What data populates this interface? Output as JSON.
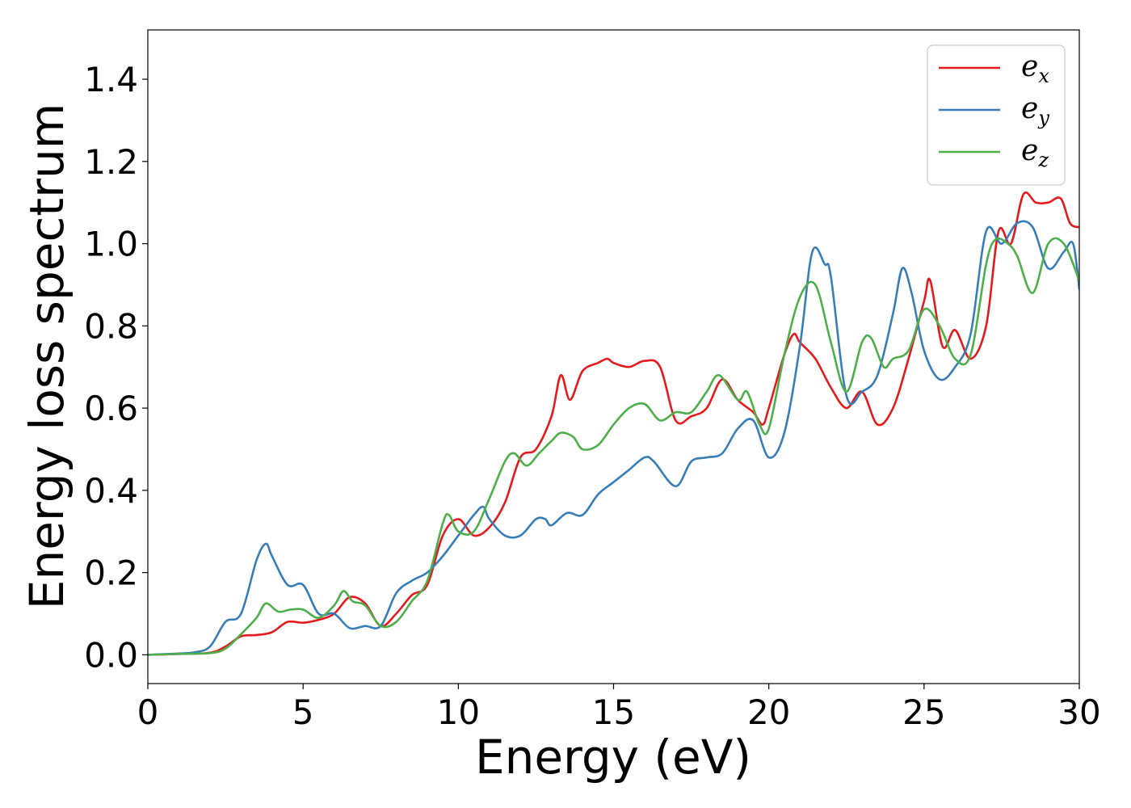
{
  "chart_data": {
    "type": "line",
    "xlabel": "Energy (eV)",
    "ylabel": "Energy loss spectrum",
    "xlim": [
      0,
      30
    ],
    "ylim": [
      -0.07,
      1.52
    ],
    "xticks": [
      0,
      5,
      10,
      15,
      20,
      25,
      30
    ],
    "xtick_labels": [
      "0",
      "5",
      "10",
      "15",
      "20",
      "25",
      "30"
    ],
    "yticks": [
      0.0,
      0.2,
      0.4,
      0.6,
      0.8,
      1.0,
      1.2,
      1.4
    ],
    "ytick_labels": [
      "0.0",
      "0.2",
      "0.4",
      "0.6",
      "0.8",
      "1.0",
      "1.2",
      "1.4"
    ],
    "grid": false,
    "legend_position": "top-right",
    "series": [
      {
        "name": "e",
        "subscript": "x",
        "color": "#e41a1c",
        "x": [
          0,
          1,
          2,
          2.5,
          3,
          3.5,
          4,
          4.5,
          5,
          5.5,
          6,
          6.5,
          7,
          7.5,
          8,
          8.5,
          9,
          9.5,
          10,
          10.5,
          11,
          11.5,
          12,
          12.5,
          13,
          13.3,
          13.6,
          14,
          14.5,
          14.8,
          15,
          15.5,
          16,
          16.5,
          17,
          17.5,
          18,
          18.5,
          19,
          19.5,
          19.8,
          20,
          20.5,
          20.8,
          21,
          21.5,
          22,
          22.5,
          23,
          23.5,
          24,
          24.5,
          25,
          25.2,
          25.6,
          26,
          26.5,
          27,
          27.4,
          27.8,
          28.2,
          28.6,
          29,
          29.4,
          29.7,
          30
        ],
        "y": [
          0,
          0.002,
          0.005,
          0.02,
          0.045,
          0.048,
          0.055,
          0.08,
          0.078,
          0.085,
          0.1,
          0.14,
          0.125,
          0.07,
          0.1,
          0.145,
          0.17,
          0.29,
          0.33,
          0.29,
          0.31,
          0.37,
          0.48,
          0.5,
          0.58,
          0.68,
          0.62,
          0.69,
          0.71,
          0.72,
          0.71,
          0.7,
          0.715,
          0.7,
          0.57,
          0.58,
          0.6,
          0.67,
          0.62,
          0.59,
          0.56,
          0.6,
          0.73,
          0.78,
          0.76,
          0.72,
          0.65,
          0.6,
          0.64,
          0.56,
          0.6,
          0.72,
          0.86,
          0.91,
          0.75,
          0.79,
          0.72,
          0.8,
          1.03,
          1.0,
          1.12,
          1.1,
          1.1,
          1.11,
          1.05,
          1.04
        ]
      },
      {
        "name": "e",
        "subscript": "y",
        "color": "#377eb8",
        "x": [
          0,
          1,
          1.5,
          2,
          2.5,
          3,
          3.5,
          3.8,
          4,
          4.5,
          5,
          5.5,
          6,
          6.5,
          7,
          7.5,
          8,
          8.5,
          9,
          9.5,
          10,
          10.5,
          10.8,
          11,
          11.5,
          12,
          12.5,
          12.8,
          13,
          13.5,
          14,
          14.5,
          15,
          15.5,
          16,
          16.3,
          17,
          17.5,
          18,
          18.5,
          19,
          19.5,
          20,
          20.5,
          21,
          21.4,
          21.8,
          22,
          22.5,
          23,
          23.5,
          24,
          24.3,
          24.6,
          25,
          25.5,
          26,
          26.5,
          27,
          27.5,
          28,
          28.5,
          29,
          29.5,
          29.8,
          30
        ],
        "y": [
          0,
          0.003,
          0.006,
          0.02,
          0.08,
          0.1,
          0.23,
          0.27,
          0.24,
          0.17,
          0.17,
          0.1,
          0.1,
          0.065,
          0.07,
          0.07,
          0.15,
          0.18,
          0.2,
          0.24,
          0.29,
          0.34,
          0.36,
          0.33,
          0.29,
          0.29,
          0.33,
          0.33,
          0.315,
          0.345,
          0.34,
          0.39,
          0.42,
          0.45,
          0.48,
          0.47,
          0.41,
          0.47,
          0.48,
          0.49,
          0.55,
          0.57,
          0.48,
          0.54,
          0.75,
          0.98,
          0.95,
          0.92,
          0.63,
          0.64,
          0.68,
          0.83,
          0.94,
          0.88,
          0.74,
          0.67,
          0.7,
          0.78,
          1.03,
          1.0,
          1.05,
          1.04,
          0.94,
          0.98,
          1.0,
          0.89
        ]
      },
      {
        "name": "e",
        "subscript": "z",
        "color": "#4daf4a",
        "x": [
          0,
          1,
          2,
          2.5,
          3,
          3.5,
          3.8,
          4.2,
          4.6,
          5,
          5.5,
          6,
          6.3,
          6.6,
          7,
          7.5,
          8,
          8.5,
          9,
          9.5,
          9.7,
          10,
          10.5,
          11,
          11.5,
          11.8,
          12.2,
          12.6,
          13,
          13.3,
          13.7,
          14,
          14.5,
          15,
          15.5,
          16,
          16.5,
          17,
          17.5,
          18,
          18.4,
          19,
          19.3,
          19.7,
          20,
          20.5,
          21,
          21.5,
          22,
          22.5,
          23,
          23.3,
          23.7,
          24,
          24.5,
          25,
          25.5,
          26,
          26.5,
          27,
          27.3,
          27.7,
          28,
          28.5,
          29,
          29.5,
          30
        ],
        "y": [
          0,
          0.002,
          0.004,
          0.015,
          0.05,
          0.09,
          0.125,
          0.105,
          0.11,
          0.11,
          0.09,
          0.12,
          0.155,
          0.13,
          0.12,
          0.07,
          0.08,
          0.13,
          0.18,
          0.32,
          0.34,
          0.3,
          0.3,
          0.38,
          0.47,
          0.49,
          0.46,
          0.49,
          0.52,
          0.54,
          0.53,
          0.5,
          0.51,
          0.56,
          0.6,
          0.61,
          0.57,
          0.59,
          0.59,
          0.64,
          0.68,
          0.62,
          0.64,
          0.56,
          0.55,
          0.73,
          0.87,
          0.9,
          0.76,
          0.64,
          0.76,
          0.77,
          0.7,
          0.72,
          0.74,
          0.84,
          0.8,
          0.72,
          0.73,
          0.95,
          1.01,
          1.0,
          0.97,
          0.88,
          1.0,
          1.0,
          0.91
        ]
      }
    ]
  }
}
